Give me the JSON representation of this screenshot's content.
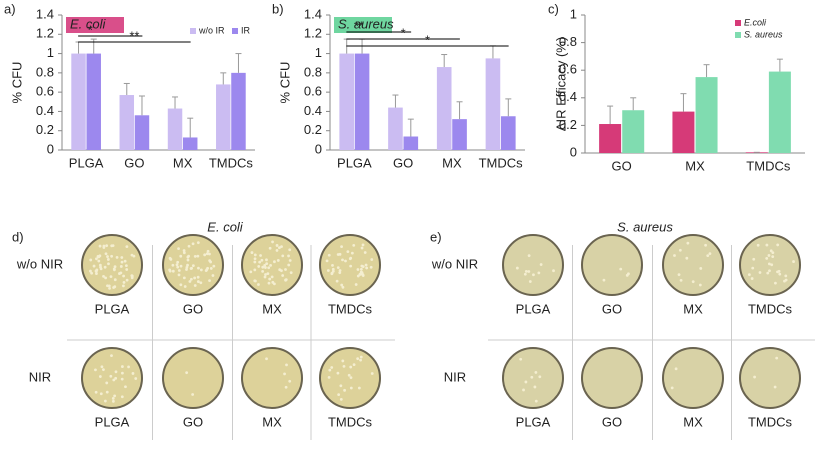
{
  "chart_data": [
    {
      "type": "bar",
      "panel_label": "a)",
      "title": "E. coli",
      "title_box_color": "#d94f8a",
      "ylabel": "% CFU",
      "categories": [
        "PLGA",
        "GO",
        "MX",
        "TMDCs"
      ],
      "series": [
        {
          "name": "w/o IR",
          "color": "#cbbcf2",
          "values": [
            1,
            0.57,
            0.43,
            0.68
          ],
          "errors": [
            0.12,
            0.12,
            0.12,
            0.12
          ]
        },
        {
          "name": "IR",
          "color": "#9c88ee",
          "values": [
            1,
            0.36,
            0.13,
            0.8
          ],
          "errors": [
            0.15,
            0.2,
            0.2,
            0.2
          ]
        }
      ],
      "ylim": [
        0,
        1.4
      ],
      "yticks": [
        0,
        0.2,
        0.4,
        0.6,
        0.8,
        1,
        1.2,
        1.4
      ],
      "legend": "top-right",
      "annotations": [
        "*",
        "**"
      ]
    },
    {
      "type": "bar",
      "panel_label": "b)",
      "title": "S. aureus",
      "title_box_color": "#6fd6a0",
      "ylabel": "% CFU",
      "categories": [
        "PLGA",
        "GO",
        "MX",
        "TMDCs"
      ],
      "series": [
        {
          "name": "w/o IR",
          "color": "#cbbcf2",
          "values": [
            1,
            0.44,
            0.86,
            0.95
          ],
          "errors": [
            0.15,
            0.13,
            0.13,
            0.13
          ]
        },
        {
          "name": "IR",
          "color": "#9c88ee",
          "values": [
            1,
            0.14,
            0.32,
            0.35
          ],
          "errors": [
            0.15,
            0.18,
            0.18,
            0.18
          ]
        }
      ],
      "ylim": [
        0,
        1.4
      ],
      "yticks": [
        0,
        0.2,
        0.4,
        0.6,
        0.8,
        1,
        1.2,
        1.4
      ],
      "annotations": [
        "**",
        "*",
        "*"
      ]
    },
    {
      "type": "bar",
      "panel_label": "c)",
      "ylabel": "ΔIR Efficacy (%)",
      "categories": [
        "GO",
        "MX",
        "TMDCs"
      ],
      "series": [
        {
          "name": "E.coli",
          "color": "#d63a78",
          "values": [
            0.21,
            0.3,
            0.005
          ],
          "errors": [
            0.13,
            0.13,
            0
          ]
        },
        {
          "name": "S. aureus",
          "color": "#80dcb0",
          "values": [
            0.31,
            0.55,
            0.59
          ],
          "errors": [
            0.09,
            0.09,
            0.09
          ]
        }
      ],
      "ylim": [
        0,
        1
      ],
      "yticks": [
        0,
        0.2,
        0.4,
        0.6,
        0.8,
        1
      ],
      "legend": "top-right"
    }
  ],
  "photo_panels": [
    {
      "panel_label": "d)",
      "title": "E. coli",
      "rows": [
        "w/o NIR",
        "NIR"
      ],
      "columns": [
        "PLGA",
        "GO",
        "MX",
        "TMDCs"
      ]
    },
    {
      "panel_label": "e)",
      "title": "S. aureus",
      "rows": [
        "w/o NIR",
        "NIR"
      ],
      "columns": [
        "PLGA",
        "GO",
        "MX",
        "TMDCs"
      ]
    }
  ]
}
